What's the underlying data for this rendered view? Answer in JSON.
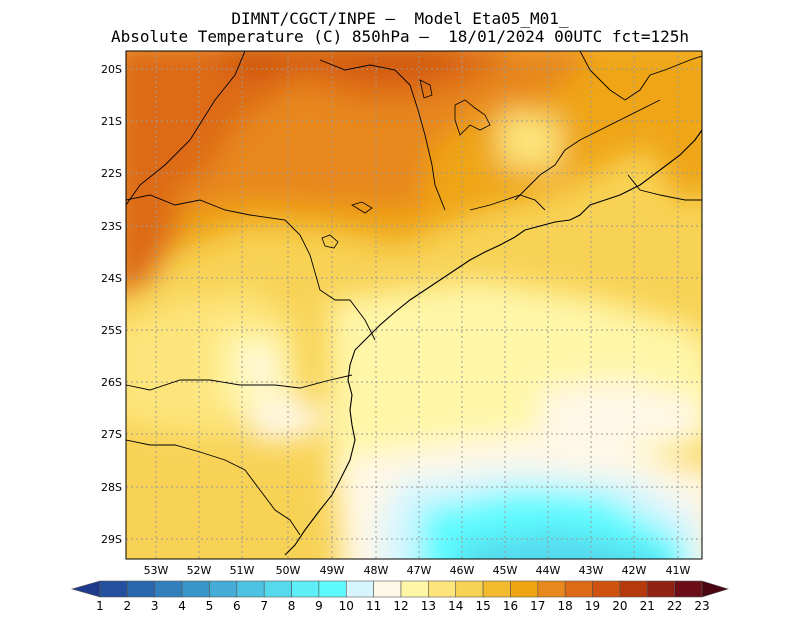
{
  "title": {
    "line1": "DIMNT/CGCT/INPE –  Model Eta05_M01_",
    "line2": "Absolute Temperature (C) 850hPa –  18/01/2024 00UTC fct=125h"
  },
  "map": {
    "variable": "Absolute Temperature",
    "units": "C",
    "level": "850hPa",
    "lat_labels": [
      "20S",
      "21S",
      "22S",
      "23S",
      "24S",
      "25S",
      "26S",
      "27S",
      "28S",
      "29S"
    ],
    "lon_labels": [
      "53W",
      "52W",
      "51W",
      "50W",
      "49W",
      "48W",
      "47W",
      "46W",
      "45W",
      "44W",
      "43W",
      "42W",
      "41W"
    ]
  },
  "colorbar": {
    "labels": [
      "1",
      "2",
      "3",
      "4",
      "5",
      "6",
      "7",
      "8",
      "9",
      "10",
      "11",
      "12",
      "13",
      "14",
      "15",
      "16",
      "17",
      "18",
      "19",
      "20",
      "21",
      "22",
      "23"
    ],
    "colors": [
      "#1f3a8c",
      "#23509e",
      "#2a68ae",
      "#3180bd",
      "#3a95c9",
      "#44acd6",
      "#4cc3e2",
      "#55d9ec",
      "#5ceff7",
      "#5dfbff",
      "#d6f5ff",
      "#fff8e6",
      "#fff6a8",
      "#fde57c",
      "#f8d255",
      "#f3ba2e",
      "#efa512",
      "#e8871c",
      "#dd6a14",
      "#cf5210",
      "#b43a0c",
      "#8f2210",
      "#6b0e18",
      "#4a0612"
    ]
  }
}
